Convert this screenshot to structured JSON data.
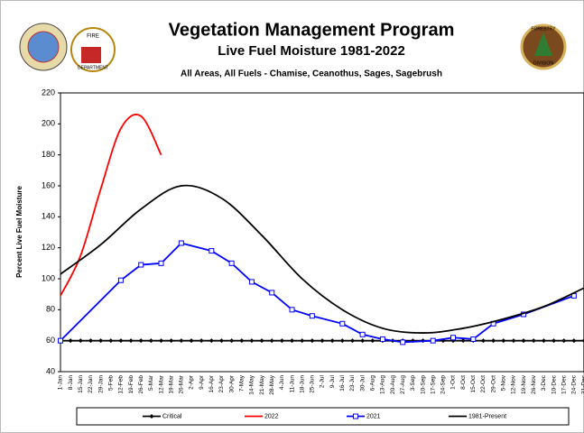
{
  "chart_data": {
    "type": "line",
    "title": "Vegetation Management Program",
    "subtitle": "Live Fuel Moisture 1981-2022",
    "description": "All Areas, All Fuels - Chamise, Ceanothus, Sages, Sagebrush",
    "y_label": "Percent Live Fuel Moisture",
    "logos": {
      "left": [
        "FIRE",
        "DEPARTMENT"
      ],
      "right": [
        "FORESTRY",
        "DIVISION"
      ]
    },
    "categories": [
      "1-Jan",
      "8-Jan",
      "15-Jan",
      "22-Jan",
      "29-Jan",
      "5-Feb",
      "12-Feb",
      "19-Feb",
      "26-Feb",
      "5-Mar",
      "12-Mar",
      "19-Mar",
      "26-Mar",
      "2-Apr",
      "9-Apr",
      "16-Apr",
      "23-Apr",
      "30-Apr",
      "7-May",
      "14-May",
      "21-May",
      "28-May",
      "4-Jun",
      "11-Jun",
      "18-Jun",
      "25-Jun",
      "2-Jul",
      "9-Jul",
      "16-Jul",
      "23-Jul",
      "30-Jul",
      "6-Aug",
      "13-Aug",
      "20-Aug",
      "27-Aug",
      "3-Sep",
      "10-Sep",
      "17-Sep",
      "24-Sep",
      "1-Oct",
      "8-Oct",
      "15-Oct",
      "22-Oct",
      "29-Oct",
      "5-Nov",
      "12-Nov",
      "19-Nov",
      "26-Nov",
      "3-Dec",
      "10-Dec",
      "17-Dec",
      "24-Dec",
      "31-Dec"
    ],
    "ylim": [
      40,
      220
    ],
    "yticks": [
      40,
      60,
      80,
      100,
      120,
      140,
      160,
      180,
      200,
      220
    ],
    "series": [
      {
        "name": "Critical",
        "color": "#000000",
        "marker": "diamond",
        "values": [
          60,
          60,
          60,
          60,
          60,
          60,
          60,
          60,
          60,
          60,
          60,
          60,
          60,
          60,
          60,
          60,
          60,
          60,
          60,
          60,
          60,
          60,
          60,
          60,
          60,
          60,
          60,
          60,
          60,
          60,
          60,
          60,
          60,
          60,
          60,
          60,
          60,
          60,
          60,
          60,
          60,
          60,
          60,
          60,
          60,
          60,
          60,
          60,
          60,
          60,
          60,
          60,
          60
        ]
      },
      {
        "name": "2022",
        "color": "#ff0000",
        "smooth": true,
        "x": [
          "1-Jan",
          "15-Jan",
          "29-Jan",
          "12-Feb",
          "26-Feb",
          "12-Mar"
        ],
        "values": [
          89,
          115,
          158,
          197,
          205,
          180
        ]
      },
      {
        "name": "2021",
        "color": "#0000ff",
        "marker": "square",
        "x": [
          "1-Jan",
          "12-Feb",
          "26-Feb",
          "12-Mar",
          "26-Mar",
          "16-Apr",
          "30-Apr",
          "14-May",
          "28-May",
          "11-Jun",
          "25-Jun",
          "16-Jul",
          "30-Jul",
          "13-Aug",
          "27-Aug",
          "17-Sep",
          "1-Oct",
          "15-Oct",
          "29-Oct",
          "19-Nov",
          "24-Dec"
        ],
        "values": [
          60,
          99,
          109,
          110,
          123,
          118,
          110,
          98,
          91,
          80,
          76,
          71,
          64,
          61,
          59,
          60,
          62,
          61,
          71,
          77,
          89
        ]
      },
      {
        "name": "1981-Present",
        "color": "#000000",
        "smooth": true,
        "x": [
          "1-Jan",
          "29-Jan",
          "26-Feb",
          "26-Mar",
          "23-Apr",
          "21-May",
          "18-Jun",
          "16-Jul",
          "13-Aug",
          "10-Sep",
          "8-Oct",
          "5-Nov",
          "3-Dec",
          "31-Dec"
        ],
        "values": [
          103,
          122,
          145,
          160,
          152,
          128,
          100,
          80,
          68,
          65,
          68,
          74,
          82,
          94
        ]
      }
    ]
  }
}
